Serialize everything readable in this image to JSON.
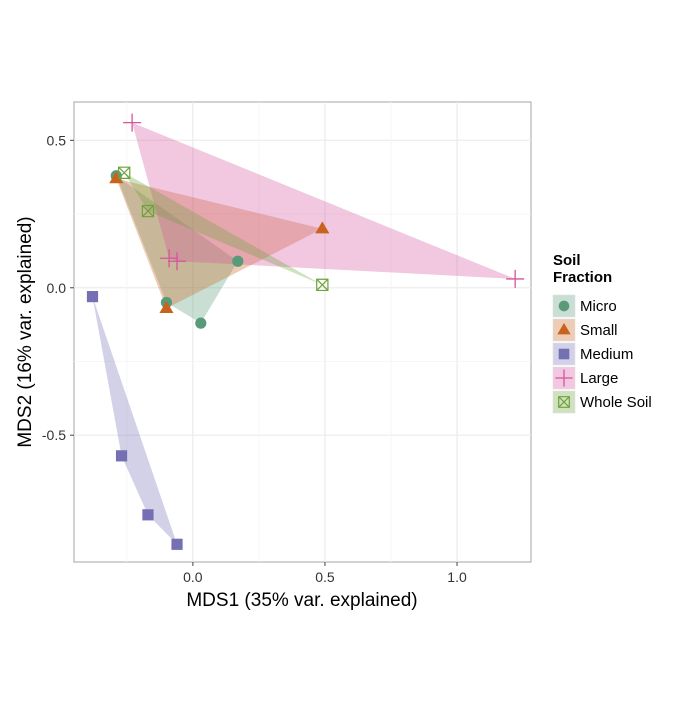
{
  "chart_data": {
    "type": "scatter",
    "title": "",
    "xlabel": "MDS1 (35% var. explained)",
    "ylabel": "MDS2 (16% var. explained)",
    "xlim": [
      -0.45,
      1.28
    ],
    "ylim": [
      -0.93,
      0.63
    ],
    "xticks": [
      0,
      0.5,
      1.0
    ],
    "xtick_labels": [
      "0.0",
      "0.5",
      "1.0"
    ],
    "yticks": [
      0.5,
      0,
      -0.5
    ],
    "ytick_labels": [
      "0.5",
      "0.0",
      "-0.5"
    ],
    "grid": true,
    "legend_position": "right",
    "legend_title": "Soil\nFraction",
    "hull_polygons": true,
    "series": [
      {
        "name": "Micro",
        "color": "#5b9a78",
        "marker": "circle",
        "points": [
          [
            -0.29,
            0.38
          ],
          [
            -0.1,
            -0.05
          ],
          [
            0.03,
            -0.12
          ],
          [
            0.17,
            0.09
          ]
        ]
      },
      {
        "name": "Small",
        "color": "#c8621c",
        "marker": "triangle",
        "points": [
          [
            -0.29,
            0.37
          ],
          [
            -0.1,
            -0.07
          ],
          [
            0.49,
            0.2
          ]
        ]
      },
      {
        "name": "Medium",
        "color": "#7570b3",
        "marker": "square",
        "points": [
          [
            -0.38,
            -0.03
          ],
          [
            -0.27,
            -0.57
          ],
          [
            -0.17,
            -0.77
          ],
          [
            -0.06,
            -0.87
          ]
        ]
      },
      {
        "name": "Large",
        "color": "#d4559c",
        "marker": "plus",
        "points": [
          [
            -0.23,
            0.56
          ],
          [
            -0.09,
            0.1
          ],
          [
            -0.06,
            0.09
          ],
          [
            1.22,
            0.03
          ]
        ]
      },
      {
        "name": "Whole Soil",
        "color": "#6ea23a",
        "marker": "boxx",
        "points": [
          [
            -0.26,
            0.39
          ],
          [
            -0.17,
            0.26
          ],
          [
            0.49,
            0.01
          ]
        ]
      }
    ]
  }
}
